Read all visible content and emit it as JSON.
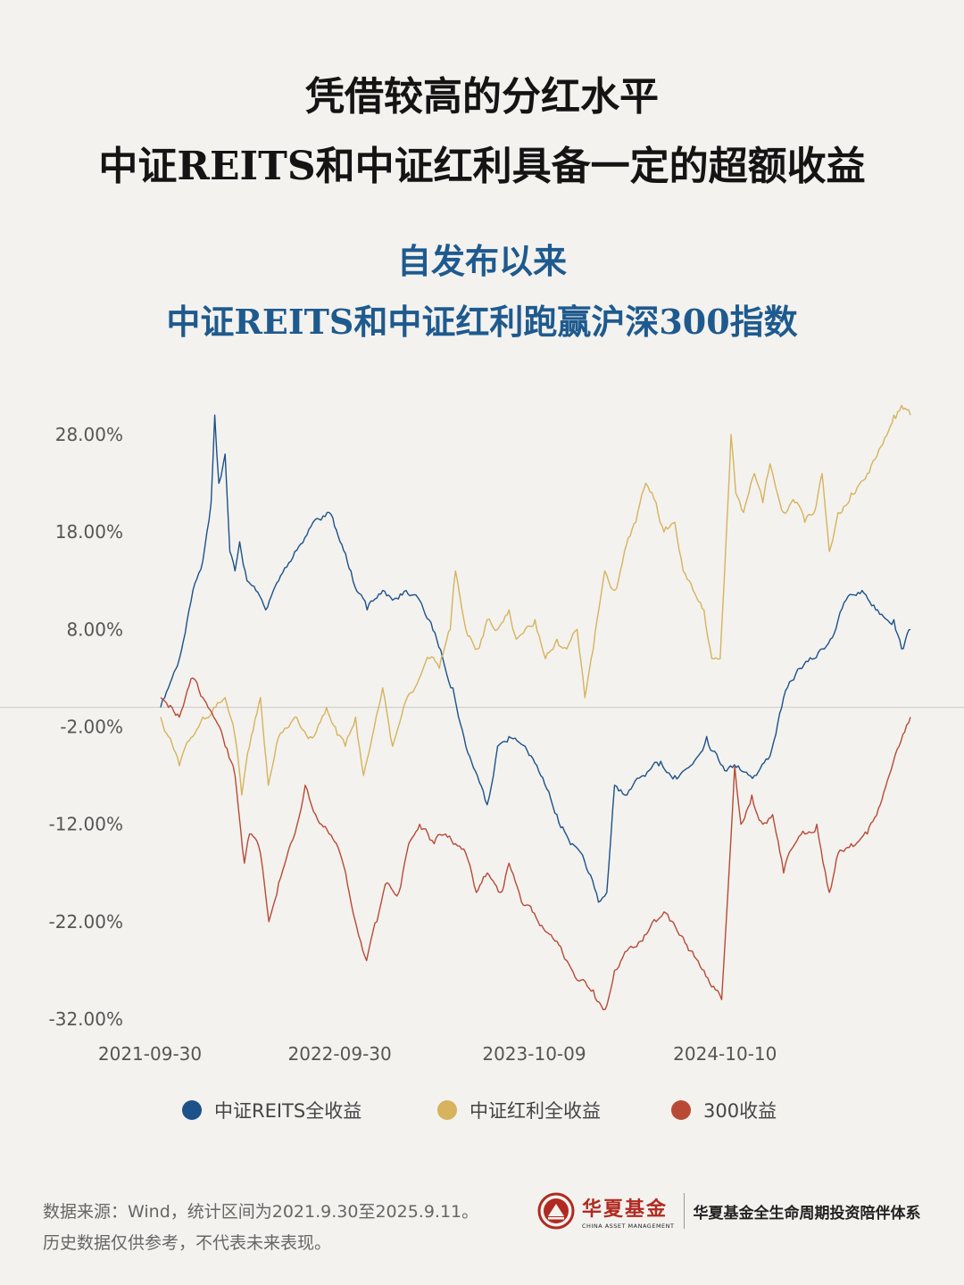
{
  "header": {
    "title_line1": "凭借较高的分红水平",
    "title_line2": "中证REITS和中证红利具备一定的超额收益",
    "subtitle_line1": "自发布以来",
    "subtitle_line2": "中证REITS和中证红利跑赢沪深300指数"
  },
  "chart_data": {
    "type": "line",
    "title": "中证REITS和中证红利跑赢沪深300指数",
    "xlabel": "",
    "ylabel": "",
    "x_ticks": [
      "2021-09-30",
      "2022-09-30",
      "2023-10-09",
      "2024-10-10"
    ],
    "y_ticks": [
      28,
      18,
      8,
      -2,
      -12,
      -22,
      -32
    ],
    "y_tick_labels": [
      "28.00%",
      "18.00%",
      "8.00%",
      "-2.00%",
      "-12.00%",
      "-22.00%",
      "-32.00%"
    ],
    "ylim": [
      -32,
      28
    ],
    "x_range": [
      "2021-09-30",
      "2025-09-11"
    ],
    "grid": "horizontal",
    "legend_position": "bottom",
    "series": [
      {
        "name": "中证REITS全收益",
        "color": "#1d5189",
        "points": [
          [
            "2021-09-30",
            0
          ],
          [
            "2021-10-15",
            2
          ],
          [
            "2021-11-05",
            5
          ],
          [
            "2021-12-01",
            12
          ],
          [
            "2021-12-20",
            15
          ],
          [
            "2022-01-05",
            21
          ],
          [
            "2022-01-12",
            30
          ],
          [
            "2022-01-20",
            23
          ],
          [
            "2022-02-01",
            26
          ],
          [
            "2022-02-10",
            16
          ],
          [
            "2022-02-20",
            14
          ],
          [
            "2022-03-01",
            17
          ],
          [
            "2022-03-15",
            13
          ],
          [
            "2022-04-01",
            12
          ],
          [
            "2022-04-20",
            10
          ],
          [
            "2022-05-15",
            13
          ],
          [
            "2022-06-15",
            16
          ],
          [
            "2022-07-20",
            19
          ],
          [
            "2022-08-20",
            20
          ],
          [
            "2022-09-10",
            17
          ],
          [
            "2022-10-01",
            14
          ],
          [
            "2022-11-01",
            10
          ],
          [
            "2022-12-01",
            12
          ],
          [
            "2022-12-20",
            11
          ],
          [
            "2023-01-15",
            12
          ],
          [
            "2023-02-10",
            11
          ],
          [
            "2023-03-15",
            7
          ],
          [
            "2023-04-15",
            2
          ],
          [
            "2023-05-10",
            -4
          ],
          [
            "2023-06-01",
            -7
          ],
          [
            "2023-06-20",
            -10
          ],
          [
            "2023-07-10",
            -4
          ],
          [
            "2023-08-01",
            -3
          ],
          [
            "2023-09-01",
            -4
          ],
          [
            "2023-10-01",
            -7
          ],
          [
            "2023-11-01",
            -11
          ],
          [
            "2023-12-01",
            -14
          ],
          [
            "2024-01-01",
            -17
          ],
          [
            "2024-01-20",
            -20
          ],
          [
            "2024-02-05",
            -19
          ],
          [
            "2024-02-20",
            -8
          ],
          [
            "2024-03-15",
            -9
          ],
          [
            "2024-04-15",
            -7
          ],
          [
            "2024-05-15",
            -6
          ],
          [
            "2024-06-15",
            -7
          ],
          [
            "2024-07-15",
            -6
          ],
          [
            "2024-08-15",
            -3
          ],
          [
            "2024-09-15",
            -6
          ],
          [
            "2024-10-15",
            -6
          ],
          [
            "2024-11-15",
            -7
          ],
          [
            "2024-12-15",
            -5
          ],
          [
            "2025-01-10",
            1
          ],
          [
            "2025-02-10",
            4
          ],
          [
            "2025-03-10",
            5
          ],
          [
            "2025-04-10",
            7
          ],
          [
            "2025-05-10",
            11
          ],
          [
            "2025-06-10",
            12
          ],
          [
            "2025-07-10",
            10
          ],
          [
            "2025-08-10",
            9
          ],
          [
            "2025-08-25",
            6
          ],
          [
            "2025-09-11",
            8
          ]
        ]
      },
      {
        "name": "中证红利全收益",
        "color": "#d6b35c",
        "points": [
          [
            "2021-09-30",
            -1
          ],
          [
            "2021-10-15",
            -3
          ],
          [
            "2021-11-05",
            -6
          ],
          [
            "2021-12-01",
            -3
          ],
          [
            "2021-12-20",
            -1
          ],
          [
            "2022-01-10",
            0
          ],
          [
            "2022-02-01",
            1
          ],
          [
            "2022-02-20",
            -3
          ],
          [
            "2022-03-05",
            -9
          ],
          [
            "2022-03-20",
            -4
          ],
          [
            "2022-04-10",
            1
          ],
          [
            "2022-04-25",
            -8
          ],
          [
            "2022-05-15",
            -3
          ],
          [
            "2022-06-15",
            -1
          ],
          [
            "2022-07-15",
            -3
          ],
          [
            "2022-08-15",
            0
          ],
          [
            "2022-09-01",
            -2
          ],
          [
            "2022-09-20",
            -4
          ],
          [
            "2022-10-10",
            -1
          ],
          [
            "2022-10-25",
            -7
          ],
          [
            "2022-11-15",
            -2
          ],
          [
            "2022-12-01",
            2
          ],
          [
            "2022-12-20",
            -4
          ],
          [
            "2023-01-10",
            0
          ],
          [
            "2023-02-01",
            2
          ],
          [
            "2023-03-01",
            5
          ],
          [
            "2023-03-20",
            4
          ],
          [
            "2023-04-10",
            8
          ],
          [
            "2023-04-20",
            14
          ],
          [
            "2023-05-10",
            8
          ],
          [
            "2023-06-01",
            6
          ],
          [
            "2023-06-20",
            9
          ],
          [
            "2023-07-10",
            8
          ],
          [
            "2023-08-01",
            10
          ],
          [
            "2023-08-15",
            7
          ],
          [
            "2023-09-01",
            8
          ],
          [
            "2023-09-20",
            9
          ],
          [
            "2023-10-10",
            5
          ],
          [
            "2023-11-01",
            7
          ],
          [
            "2023-11-20",
            6
          ],
          [
            "2023-12-10",
            8
          ],
          [
            "2023-12-25",
            1
          ],
          [
            "2024-01-10",
            6
          ],
          [
            "2024-02-01",
            14
          ],
          [
            "2024-02-20",
            12
          ],
          [
            "2024-03-10",
            16
          ],
          [
            "2024-04-01",
            19
          ],
          [
            "2024-04-20",
            23
          ],
          [
            "2024-05-10",
            21
          ],
          [
            "2024-05-25",
            18
          ],
          [
            "2024-06-15",
            19
          ],
          [
            "2024-07-01",
            14
          ],
          [
            "2024-07-20",
            12
          ],
          [
            "2024-08-10",
            10
          ],
          [
            "2024-08-25",
            5
          ],
          [
            "2024-09-10",
            5
          ],
          [
            "2024-09-25",
            21
          ],
          [
            "2024-10-01",
            28
          ],
          [
            "2024-10-10",
            22
          ],
          [
            "2024-10-25",
            20
          ],
          [
            "2024-11-15",
            24
          ],
          [
            "2024-12-01",
            21
          ],
          [
            "2024-12-15",
            25
          ],
          [
            "2025-01-10",
            20
          ],
          [
            "2025-02-01",
            21
          ],
          [
            "2025-02-20",
            19
          ],
          [
            "2025-03-10",
            20
          ],
          [
            "2025-03-25",
            24
          ],
          [
            "2025-04-08",
            16
          ],
          [
            "2025-04-25",
            20
          ],
          [
            "2025-05-20",
            22
          ],
          [
            "2025-06-20",
            24
          ],
          [
            "2025-07-20",
            27
          ],
          [
            "2025-08-10",
            30
          ],
          [
            "2025-08-25",
            31
          ],
          [
            "2025-09-11",
            30
          ]
        ]
      },
      {
        "name": "300收益",
        "color": "#b84a35",
        "points": [
          [
            "2021-09-30",
            1
          ],
          [
            "2021-10-15",
            0
          ],
          [
            "2021-11-05",
            -1
          ],
          [
            "2021-12-01",
            3
          ],
          [
            "2021-12-20",
            1
          ],
          [
            "2022-01-10",
            -1
          ],
          [
            "2022-02-01",
            -4
          ],
          [
            "2022-02-20",
            -7
          ],
          [
            "2022-03-10",
            -16
          ],
          [
            "2022-03-20",
            -13
          ],
          [
            "2022-04-10",
            -15
          ],
          [
            "2022-04-26",
            -22
          ],
          [
            "2022-05-15",
            -18
          ],
          [
            "2022-06-15",
            -13
          ],
          [
            "2022-07-05",
            -8
          ],
          [
            "2022-07-25",
            -11
          ],
          [
            "2022-08-20",
            -13
          ],
          [
            "2022-09-10",
            -15
          ],
          [
            "2022-10-01",
            -20
          ],
          [
            "2022-10-31",
            -26
          ],
          [
            "2022-11-20",
            -22
          ],
          [
            "2022-12-10",
            -18
          ],
          [
            "2023-01-01",
            -19
          ],
          [
            "2023-01-20",
            -14
          ],
          [
            "2023-02-10",
            -12
          ],
          [
            "2023-03-10",
            -14
          ],
          [
            "2023-04-01",
            -13
          ],
          [
            "2023-04-20",
            -14
          ],
          [
            "2023-05-10",
            -15
          ],
          [
            "2023-05-30",
            -19
          ],
          [
            "2023-06-20",
            -17
          ],
          [
            "2023-07-15",
            -19
          ],
          [
            "2023-08-01",
            -16
          ],
          [
            "2023-08-25",
            -20
          ],
          [
            "2023-09-15",
            -21
          ],
          [
            "2023-10-10",
            -23
          ],
          [
            "2023-11-01",
            -24
          ],
          [
            "2023-11-20",
            -26
          ],
          [
            "2023-12-10",
            -28
          ],
          [
            "2024-01-10",
            -29
          ],
          [
            "2024-02-02",
            -31
          ],
          [
            "2024-02-20",
            -27
          ],
          [
            "2024-03-15",
            -25
          ],
          [
            "2024-04-10",
            -24
          ],
          [
            "2024-05-10",
            -22
          ],
          [
            "2024-05-25",
            -21
          ],
          [
            "2024-06-20",
            -23
          ],
          [
            "2024-07-15",
            -25
          ],
          [
            "2024-08-10",
            -27
          ],
          [
            "2024-09-01",
            -29
          ],
          [
            "2024-09-13",
            -30
          ],
          [
            "2024-09-25",
            -19
          ],
          [
            "2024-10-08",
            -6
          ],
          [
            "2024-10-20",
            -12
          ],
          [
            "2024-11-10",
            -9
          ],
          [
            "2024-12-01",
            -12
          ],
          [
            "2024-12-20",
            -11
          ],
          [
            "2025-01-10",
            -17
          ],
          [
            "2025-02-01",
            -14
          ],
          [
            "2025-02-20",
            -13
          ],
          [
            "2025-03-15",
            -12
          ],
          [
            "2025-04-08",
            -19
          ],
          [
            "2025-04-25",
            -15
          ],
          [
            "2025-05-20",
            -14
          ],
          [
            "2025-06-20",
            -13
          ],
          [
            "2025-07-15",
            -10
          ],
          [
            "2025-08-01",
            -7
          ],
          [
            "2025-08-20",
            -4
          ],
          [
            "2025-09-11",
            -1
          ]
        ]
      }
    ]
  },
  "footer": {
    "line1": "数据来源：Wind，统计区间为2021.9.30至2025.9.11。",
    "line2": "历史数据仅供参考，不代表未来表现。"
  },
  "brand": {
    "name_cn": "华夏基金",
    "name_en": "CHINA ASSET MANAGEMENT",
    "tagline": "华夏基金全生命周期投资陪伴体系",
    "color": "#b12a21"
  }
}
